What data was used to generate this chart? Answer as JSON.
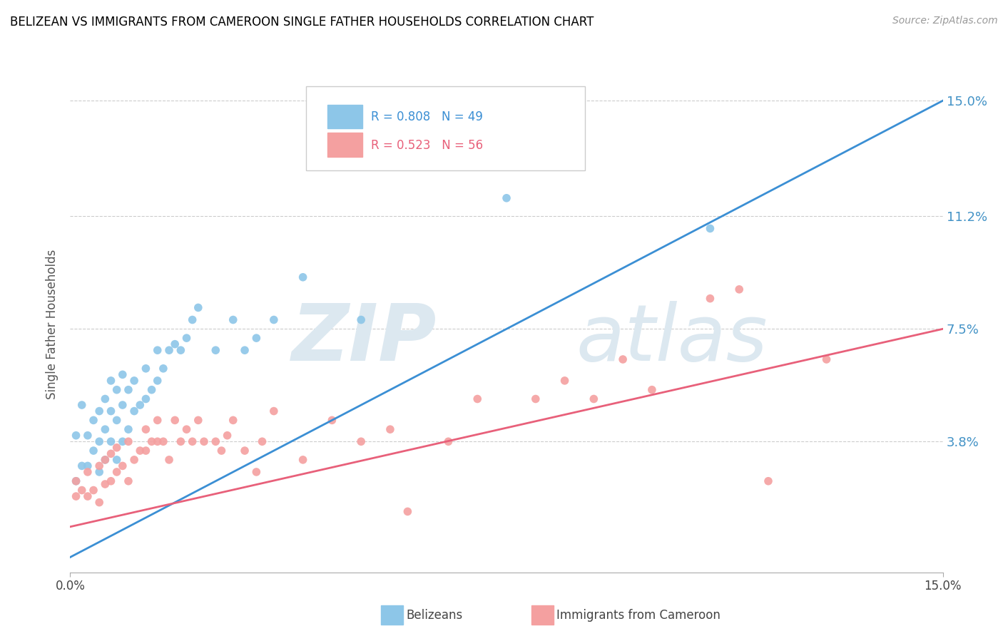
{
  "title": "BELIZEAN VS IMMIGRANTS FROM CAMEROON SINGLE FATHER HOUSEHOLDS CORRELATION CHART",
  "source": "Source: ZipAtlas.com",
  "ylabel": "Single Father Households",
  "x_min": 0.0,
  "x_max": 0.15,
  "y_min": -0.005,
  "y_max": 0.158,
  "yticks": [
    0.038,
    0.075,
    0.112,
    0.15
  ],
  "ytick_labels": [
    "3.8%",
    "7.5%",
    "11.2%",
    "15.0%"
  ],
  "belizean_R": 0.808,
  "belizean_N": 49,
  "cameroon_R": 0.523,
  "cameroon_N": 56,
  "belizean_color": "#8dc6e8",
  "cameroon_color": "#f4a0a0",
  "line_color_belizean": "#3b8fd4",
  "line_color_cameroon": "#e8607a",
  "belizean_line_x0": 0.0,
  "belizean_line_y0": 0.0,
  "belizean_line_x1": 0.15,
  "belizean_line_y1": 0.15,
  "cameroon_line_x0": 0.0,
  "cameroon_line_y0": 0.01,
  "cameroon_line_x1": 0.15,
  "cameroon_line_y1": 0.075,
  "belizean_scatter_x": [
    0.001,
    0.001,
    0.002,
    0.002,
    0.003,
    0.003,
    0.004,
    0.004,
    0.005,
    0.005,
    0.005,
    0.006,
    0.006,
    0.006,
    0.007,
    0.007,
    0.007,
    0.008,
    0.008,
    0.008,
    0.009,
    0.009,
    0.009,
    0.01,
    0.01,
    0.011,
    0.011,
    0.012,
    0.013,
    0.013,
    0.014,
    0.015,
    0.015,
    0.016,
    0.017,
    0.018,
    0.019,
    0.02,
    0.021,
    0.022,
    0.025,
    0.028,
    0.03,
    0.032,
    0.035,
    0.04,
    0.05,
    0.075,
    0.11
  ],
  "belizean_scatter_y": [
    0.025,
    0.04,
    0.03,
    0.05,
    0.03,
    0.04,
    0.035,
    0.045,
    0.028,
    0.038,
    0.048,
    0.032,
    0.042,
    0.052,
    0.038,
    0.048,
    0.058,
    0.032,
    0.045,
    0.055,
    0.038,
    0.05,
    0.06,
    0.042,
    0.055,
    0.048,
    0.058,
    0.05,
    0.052,
    0.062,
    0.055,
    0.058,
    0.068,
    0.062,
    0.068,
    0.07,
    0.068,
    0.072,
    0.078,
    0.082,
    0.068,
    0.078,
    0.068,
    0.072,
    0.078,
    0.092,
    0.078,
    0.118,
    0.108
  ],
  "cameroon_scatter_x": [
    0.001,
    0.001,
    0.002,
    0.003,
    0.003,
    0.004,
    0.005,
    0.005,
    0.006,
    0.006,
    0.007,
    0.007,
    0.008,
    0.008,
    0.009,
    0.01,
    0.01,
    0.011,
    0.012,
    0.013,
    0.013,
    0.014,
    0.015,
    0.015,
    0.016,
    0.017,
    0.018,
    0.019,
    0.02,
    0.021,
    0.022,
    0.023,
    0.025,
    0.026,
    0.027,
    0.028,
    0.03,
    0.032,
    0.033,
    0.035,
    0.04,
    0.045,
    0.05,
    0.055,
    0.058,
    0.065,
    0.07,
    0.08,
    0.085,
    0.09,
    0.095,
    0.1,
    0.11,
    0.115,
    0.12,
    0.13
  ],
  "cameroon_scatter_y": [
    0.02,
    0.025,
    0.022,
    0.02,
    0.028,
    0.022,
    0.018,
    0.03,
    0.024,
    0.032,
    0.025,
    0.034,
    0.028,
    0.036,
    0.03,
    0.025,
    0.038,
    0.032,
    0.035,
    0.035,
    0.042,
    0.038,
    0.038,
    0.045,
    0.038,
    0.032,
    0.045,
    0.038,
    0.042,
    0.038,
    0.045,
    0.038,
    0.038,
    0.035,
    0.04,
    0.045,
    0.035,
    0.028,
    0.038,
    0.048,
    0.032,
    0.045,
    0.038,
    0.042,
    0.015,
    0.038,
    0.052,
    0.052,
    0.058,
    0.052,
    0.065,
    0.055,
    0.085,
    0.088,
    0.025,
    0.065
  ]
}
